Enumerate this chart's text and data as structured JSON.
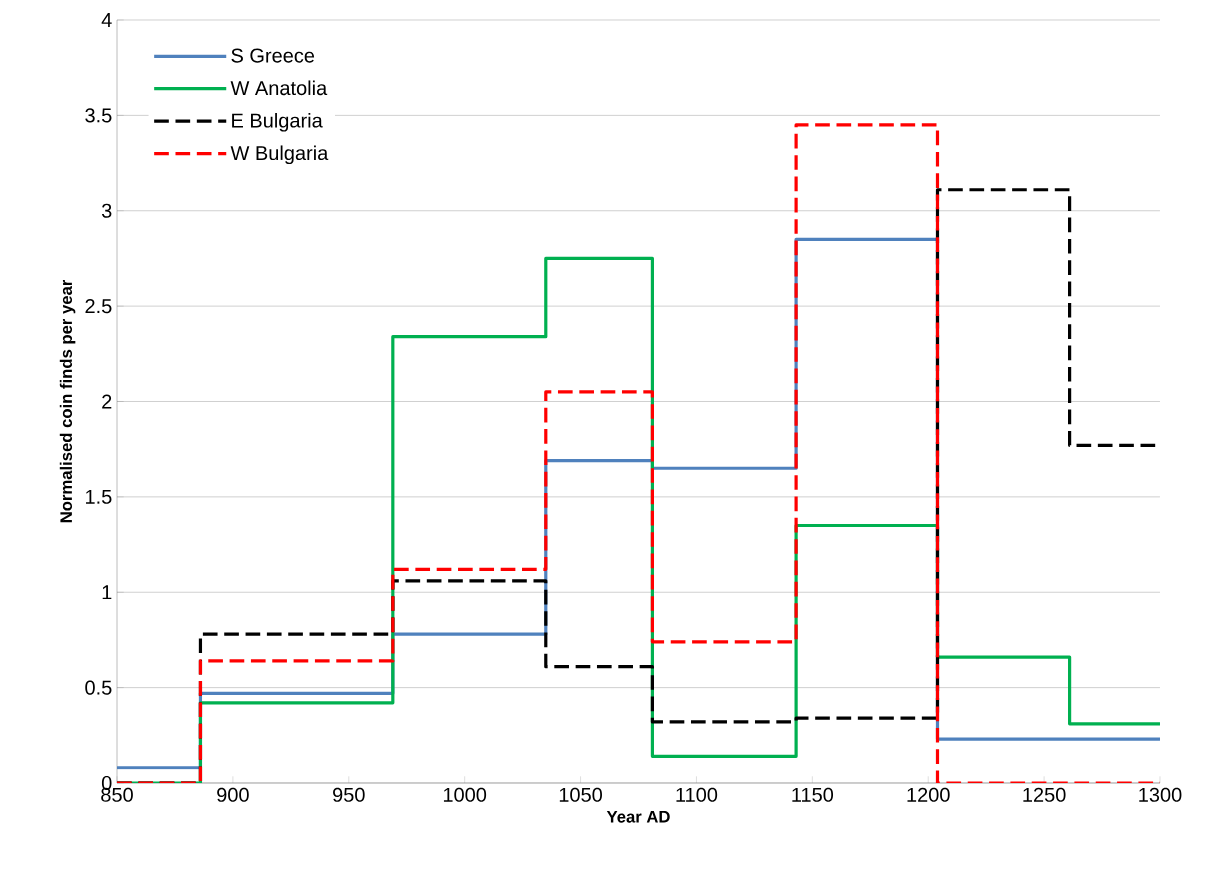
{
  "chart_data": {
    "type": "step",
    "xlabel": "Year AD",
    "ylabel": "Normalised coin finds per year",
    "xlim": [
      850,
      1300
    ],
    "ylim": [
      0,
      4
    ],
    "xticks": [
      850,
      900,
      950,
      1000,
      1050,
      1100,
      1150,
      1200,
      1250,
      1300
    ],
    "yticks": [
      0,
      {
        "value": 0.5,
        "label": "0.5"
      },
      1,
      {
        "value": 1.5,
        "label": "1.5"
      },
      2,
      {
        "value": 2.5,
        "label": "2.5"
      },
      3,
      {
        "value": 3.5,
        "label": "3.5"
      },
      4
    ],
    "grid": "y",
    "legend": "top left",
    "series": [
      {
        "name": "S Greece",
        "color": "#4f81bd",
        "line_style": "solid",
        "x": [
          850,
          886,
          969,
          1035,
          1081,
          1143,
          1204,
          1300
        ],
        "values": [
          0.08,
          0.47,
          0.78,
          1.69,
          1.65,
          2.85,
          0.23,
          0.23
        ]
      },
      {
        "name": "W Anatolia",
        "color": "#00b050",
        "line_style": "solid",
        "x": [
          850,
          886,
          969,
          1035,
          1081,
          1143,
          1204,
          1261,
          1300
        ],
        "values": [
          0,
          0.42,
          2.34,
          2.75,
          0.14,
          1.35,
          0.66,
          0.31,
          0.31
        ]
      },
      {
        "name": "E Bulgaria",
        "color": "#000000",
        "line_style": "dashed",
        "x": [
          850,
          886,
          969,
          1035,
          1081,
          1143,
          1204,
          1261,
          1300
        ],
        "values": [
          0,
          0.78,
          1.06,
          0.61,
          0.32,
          0.34,
          3.11,
          1.77,
          1.77
        ]
      },
      {
        "name": "W Bulgaria",
        "color": "#ff0000",
        "line_style": "dashed",
        "x": [
          850,
          886,
          969,
          1035,
          1081,
          1143,
          1204,
          1300
        ],
        "values": [
          0,
          0.64,
          1.12,
          2.05,
          0.74,
          3.45,
          0,
          0
        ]
      }
    ]
  }
}
